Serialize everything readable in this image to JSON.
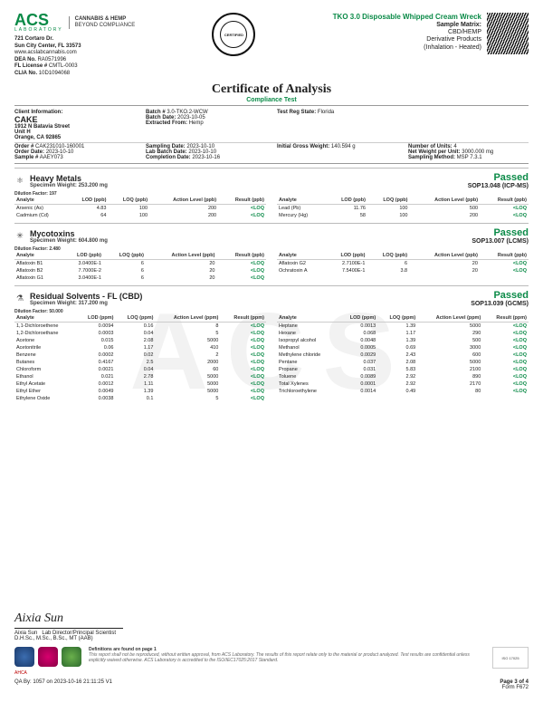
{
  "header": {
    "lab_name": "ACS",
    "lab_sub": "LABORATORY",
    "tagline1": "CANNABIS & HEMP",
    "tagline2": "BEYOND COMPLIANCE",
    "addr1": "721 Cortaro Dr.",
    "addr2": "Sun City Center, FL 33573",
    "site": "www.acslabcannabis.com",
    "dea_lbl": "DEA No.",
    "dea": "RA0571996",
    "lic_lbl": "FL License #",
    "lic": "CMTL-0003",
    "clia_lbl": "CLIA No.",
    "clia": "10D1094068",
    "seal_text": "CERTIFIED"
  },
  "product": {
    "name": "TKO 3.0 Disposable Whipped Cream Wreck",
    "matrix_lbl": "Sample Matrix:",
    "matrix": "CBD/HEMP",
    "deriv": "Derivative Products",
    "method": "(Inhalation - Heated)"
  },
  "title": {
    "main": "Certificate of Analysis",
    "sub": "Compliance Test"
  },
  "client": {
    "hdr": "Client Information:",
    "name": "CAKE",
    "addr1": "1912 N Batavia Street",
    "addr2": "Unit H",
    "addr3": "Orange, CA 92865",
    "order_lbl": "Order #",
    "order": "CAK231010-160001",
    "odate_lbl": "Order Date:",
    "odate": "2023-10-10",
    "sample_lbl": "Sample #",
    "sample": "AAEY073",
    "batch_lbl": "Batch #",
    "batch": "3.0-TKO.2-WCW",
    "bdate_lbl": "Batch Date:",
    "bdate": "2023-10-05",
    "extract_lbl": "Extracted From:",
    "extract": "Hemp",
    "sdate_lbl": "Sampling Date:",
    "sdate": "2023-10-10",
    "lbdate_lbl": "Lab Batch Date:",
    "lbdate": "2023-10-10",
    "cdate_lbl": "Completion Date:",
    "cdate": "2023-10-16",
    "testreg_lbl": "Test Reg State:",
    "testreg": "Florida",
    "gross_lbl": "Initial Gross Weight:",
    "gross": "140.594 g",
    "units_lbl": "Number of Units:",
    "units": "4",
    "netpu_lbl": "Net Weight per Unit:",
    "netpu": "3000.000 mg",
    "smeth_lbl": "Sampling Method:",
    "smeth": "MSP 7.3.1"
  },
  "metals": {
    "icon": "H",
    "title": "Heavy Metals",
    "spec_lbl": "Specimen Weight:",
    "spec": "253.200 mg",
    "passed": "Passed",
    "sop": "SOP13.048 (ICP-MS)",
    "dil": "Dilution Factor: 197",
    "cols": [
      "Analyte",
      "LOD (ppb)",
      "LOQ (ppb)",
      "Action Level (ppb)",
      "Result (ppb)"
    ],
    "left": [
      [
        "Arsenic (As)",
        "4.83",
        "100",
        "200",
        "<LOQ"
      ],
      [
        "Cadmium (Cd)",
        "64",
        "100",
        "200",
        "<LOQ"
      ]
    ],
    "right": [
      [
        "Lead (Pb)",
        "11.76",
        "100",
        "500",
        "<LOQ"
      ],
      [
        "Mercury (Hg)",
        "58",
        "100",
        "200",
        "<LOQ"
      ]
    ]
  },
  "myco": {
    "icon": "❄",
    "title": "Mycotoxins",
    "spec_lbl": "Specimen Weight:",
    "spec": "604.800 mg",
    "passed": "Passed",
    "sop": "SOP13.007 (LCMS)",
    "dil": "Dilution Factor: 2.480",
    "cols": [
      "Analyte",
      "LOD (ppb)",
      "LOQ (ppb)",
      "Action Level (ppb)",
      "Result (ppb)"
    ],
    "left": [
      [
        "Aflatoxin B1",
        "3.0400E-1",
        "6",
        "20",
        "<LOQ"
      ],
      [
        "Aflatoxin B2",
        "7.7000E-2",
        "6",
        "20",
        "<LOQ"
      ],
      [
        "Aflatoxin G1",
        "3.0400E-1",
        "6",
        "20",
        "<LOQ"
      ]
    ],
    "right": [
      [
        "Aflatoxin G2",
        "2.7100E-1",
        "6",
        "20",
        "<LOQ"
      ],
      [
        "Ochratoxin A",
        "7.5400E-1",
        "3.8",
        "20",
        "<LOQ"
      ]
    ]
  },
  "solv": {
    "icon": "⚗",
    "title": "Residual Solvents - FL (CBD)",
    "spec_lbl": "Specimen Weight:",
    "spec": "317.200 mg",
    "passed": "Passed",
    "sop": "SOP13.039 (GCMS)",
    "dil": "Dilution Factor: 50.000",
    "cols": [
      "Analyte",
      "LOD (ppm)",
      "LOQ (ppm)",
      "Action Level (ppm)",
      "Result (ppm)"
    ],
    "left": [
      [
        "1,1-Dichloroethene",
        "0.0094",
        "0.16",
        "8",
        "<LOQ"
      ],
      [
        "1,2-Dichloroethane",
        "0.0003",
        "0.04",
        "5",
        "<LOQ"
      ],
      [
        "Acetone",
        "0.015",
        "2.08",
        "5000",
        "<LOQ"
      ],
      [
        "Acetonitrile",
        "0.06",
        "1.17",
        "410",
        "<LOQ"
      ],
      [
        "Benzene",
        "0.0002",
        "0.02",
        "2",
        "<LOQ"
      ],
      [
        "Butanes",
        "0.4167",
        "2.5",
        "2000",
        "<LOQ"
      ],
      [
        "Chloroform",
        "0.0021",
        "0.04",
        "60",
        "<LOQ"
      ],
      [
        "Ethanol",
        "0.021",
        "2.78",
        "5000",
        "<LOQ"
      ],
      [
        "Ethyl Acetate",
        "0.0012",
        "1.11",
        "5000",
        "<LOQ"
      ],
      [
        "Ethyl Ether",
        "0.0049",
        "1.39",
        "5000",
        "<LOQ"
      ],
      [
        "Ethylene Oxide",
        "0.0038",
        "0.1",
        "5",
        "<LOQ"
      ]
    ],
    "right": [
      [
        "Heptane",
        "0.0013",
        "1.39",
        "5000",
        "<LOQ"
      ],
      [
        "Hexane",
        "0.068",
        "1.17",
        "290",
        "<LOQ"
      ],
      [
        "Isopropyl alcohol",
        "0.0048",
        "1.39",
        "500",
        "<LOQ"
      ],
      [
        "Methanol",
        "0.0005",
        "0.69",
        "3000",
        "<LOQ"
      ],
      [
        "Methylene chloride",
        "0.0029",
        "2.43",
        "600",
        "<LOQ"
      ],
      [
        "Pentane",
        "0.037",
        "2.08",
        "5000",
        "<LOQ"
      ],
      [
        "Propane",
        "0.031",
        "5.83",
        "2100",
        "<LOQ"
      ],
      [
        "Toluene",
        "0.0089",
        "2.92",
        "890",
        "<LOQ"
      ],
      [
        "Total Xylenes",
        "0.0001",
        "2.92",
        "2170",
        "<LOQ"
      ],
      [
        "Trichloroethylene",
        "0.0014",
        "0.49",
        "80",
        "<LOQ"
      ]
    ]
  },
  "footer": {
    "sig_name": "Aixia Sun",
    "sig_title": "Lab Director/Principal Scientist",
    "sig_cred": "D.H.Sc., M.Sc., B.Sc., MT (AAB)",
    "def": "Definitions are found on page 1",
    "disc": "This report shall not be reproduced, without written approval, from ACS Laboratory. The results of this report relate only to the material or product analyzed. Test results are confidential unless explicitly waived otherwise. ACS Laboratory is accredited to the ISO/IEC17025:2017 Standard.",
    "qa": "QA By: 1057 on 2023-10-16 21:11:25 V1",
    "page": "Page 3 of 4",
    "form": "Form F672"
  }
}
